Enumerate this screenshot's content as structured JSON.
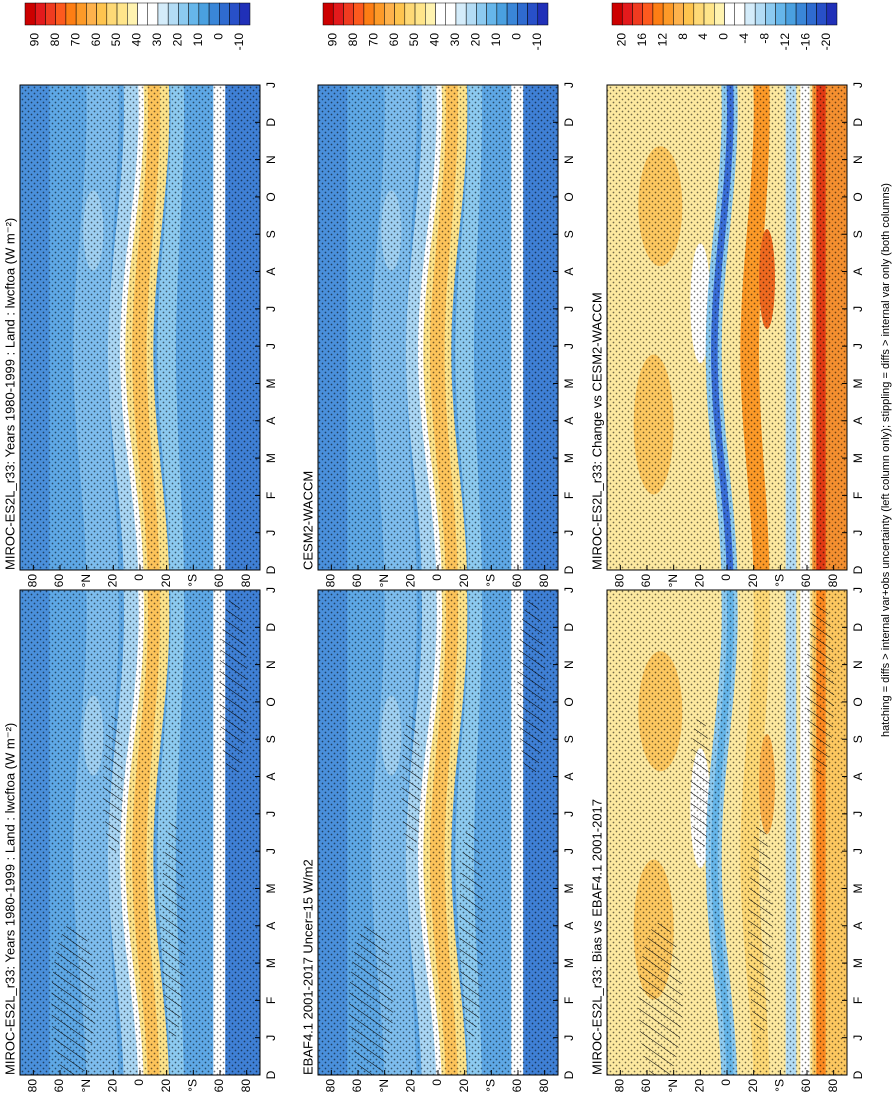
{
  "panels": [
    {
      "title": "MIROC-ES2L_r33: Years 1980-1999 : Land : lwcftoa (W m⁻²)"
    },
    {
      "title": "EBAF4.1 2001-2017 Uncer=15 W/m2"
    },
    {
      "title": "MIROC-ES2L_r33: Bias vs EBAF4.1 2001-2017"
    },
    {
      "title": "MIROC-ES2L_r33: Years 1980-1999 : Land : lwcftoa (W m⁻²)"
    },
    {
      "title": "CESM2-WACCM"
    },
    {
      "title": "MIROC-ES2L_r33: Change vs CESM2-WACCM"
    }
  ],
  "lat_labels": [
    "80",
    "60",
    "°N",
    "20",
    "0",
    "20",
    "°S",
    "60",
    "80"
  ],
  "month_labels": [
    "D",
    "J",
    "F",
    "M",
    "A",
    "M",
    "J",
    "J",
    "A",
    "S",
    "O",
    "N",
    "D",
    "J"
  ],
  "colorbars": [
    {
      "labels": [
        90,
        80,
        70,
        60,
        50,
        40,
        30,
        20,
        10,
        0,
        -10
      ],
      "colors": [
        "#cc0000",
        "#e31a1c",
        "#f03b20",
        "#fd5a1e",
        "#fd7e14",
        "#fd9a28",
        "#feb24c",
        "#fec44f",
        "#fed976",
        "#ffe58a",
        "#fff3b0",
        "#ffffff",
        "#ffffff",
        "#d4ecfa",
        "#b3dcf5",
        "#8ccaf0",
        "#66b6ea",
        "#4aa0e0",
        "#3a86d8",
        "#2f6bd0",
        "#2850c8",
        "#2030b8"
      ]
    },
    {
      "labels": [
        90,
        80,
        70,
        60,
        50,
        40,
        30,
        20,
        10,
        0,
        -10
      ],
      "colors": [
        "#cc0000",
        "#e31a1c",
        "#f03b20",
        "#fd5a1e",
        "#fd7e14",
        "#fd9a28",
        "#feb24c",
        "#fec44f",
        "#fed976",
        "#ffe58a",
        "#fff3b0",
        "#ffffff",
        "#ffffff",
        "#d4ecfa",
        "#b3dcf5",
        "#8ccaf0",
        "#66b6ea",
        "#4aa0e0",
        "#3a86d8",
        "#2f6bd0",
        "#2850c8",
        "#2030b8"
      ]
    },
    {
      "labels": [
        20,
        16,
        12,
        8,
        4,
        0,
        -4,
        -8,
        -12,
        -16,
        -20
      ],
      "colors": [
        "#cc0000",
        "#e31a1c",
        "#f03b20",
        "#fd5a1e",
        "#fd7e14",
        "#fd9a28",
        "#feb24c",
        "#fec44f",
        "#fed976",
        "#ffe58a",
        "#fff3b0",
        "#ffffff",
        "#ffffff",
        "#d4ecfa",
        "#b3dcf5",
        "#8ccaf0",
        "#66b6ea",
        "#4aa0e0",
        "#3a86d8",
        "#2f6bd0",
        "#2850c8",
        "#2030b8"
      ]
    }
  ],
  "footnote": "hatching = diffs > internal var+obs uncertainty (left column only); stippling = diffs > internal var only (both columns)"
}
